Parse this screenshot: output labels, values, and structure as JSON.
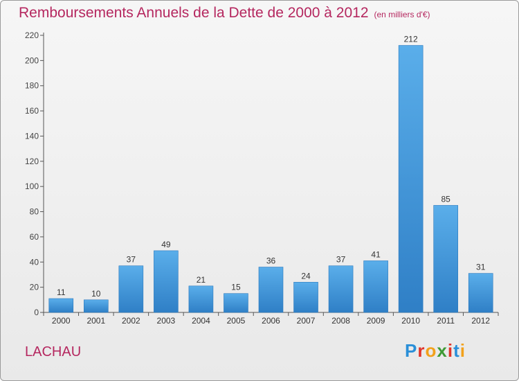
{
  "header": {
    "title": "Remboursements Annuels de la Dette de 2000 à 2012",
    "subtitle": "(en milliers d'€)"
  },
  "commune_name": "LACHAU",
  "brand": {
    "name": "Proxiti",
    "letters": [
      {
        "char": "P",
        "color": "#2a8fd8"
      },
      {
        "char": "r",
        "color": "#e0342a"
      },
      {
        "char": "o",
        "color": "#f2a11b"
      },
      {
        "char": "x",
        "color": "#3f9a36"
      },
      {
        "char": "i",
        "color": "#e0342a"
      },
      {
        "char": "t",
        "color": "#2a8fd8"
      },
      {
        "char": "i",
        "color": "#f2a11b"
      }
    ]
  },
  "colors": {
    "title": "#b5275f",
    "bar_light": "#5aaeea",
    "bar_dark": "#2f7fc6",
    "axis": "#555555"
  },
  "chart_data": {
    "type": "bar",
    "categories": [
      "2000",
      "2001",
      "2002",
      "2003",
      "2004",
      "2005",
      "2006",
      "2007",
      "2008",
      "2009",
      "2010",
      "2011",
      "2012"
    ],
    "values": [
      11,
      10,
      37,
      49,
      21,
      15,
      36,
      24,
      37,
      41,
      212,
      85,
      31
    ],
    "title": "Remboursements Annuels de la Dette de 2000 à 2012",
    "ylim": [
      0,
      220
    ],
    "yticks": [
      0,
      20,
      40,
      60,
      80,
      100,
      120,
      140,
      160,
      180,
      200,
      220
    ],
    "grid": false,
    "legend": "none"
  }
}
